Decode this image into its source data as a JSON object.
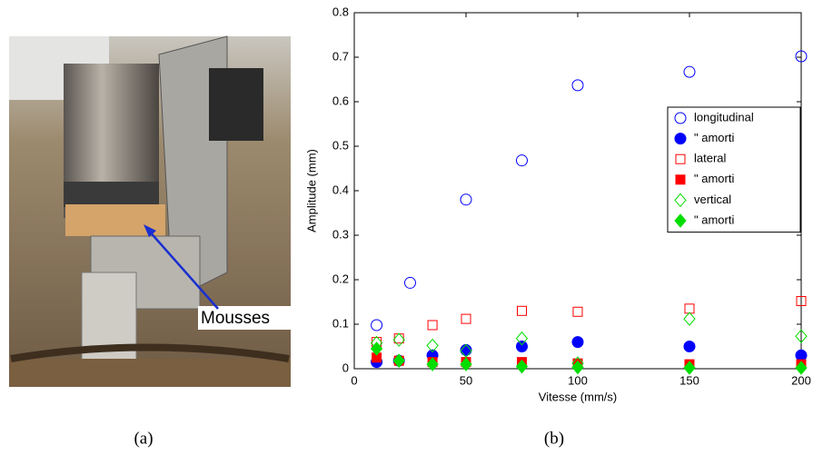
{
  "figure": {
    "photo_label": "Mousses",
    "captions": [
      "(a)",
      "(b)"
    ]
  },
  "chart_data": {
    "type": "scatter",
    "xlabel": "Vitesse (mm/s)",
    "ylabel": "Amplitude (mm)",
    "xlim": [
      0,
      200
    ],
    "ylim": [
      0,
      0.8
    ],
    "xticks": [
      0,
      50,
      100,
      150,
      200
    ],
    "yticks": [
      0,
      0.1,
      0.2,
      0.3,
      0.4,
      0.5,
      0.6,
      0.7,
      0.8
    ],
    "grid": false,
    "legend": "upper right",
    "series": [
      {
        "name": "longitudinal",
        "color": "#0000ff",
        "marker": "circle",
        "filled": false,
        "x": [
          10,
          25,
          50,
          75,
          100,
          150,
          200
        ],
        "values": [
          0.098,
          0.193,
          0.38,
          0.468,
          0.637,
          0.667,
          0.702
        ]
      },
      {
        "name": "\" amorti",
        "color": "#0000ff",
        "marker": "circle",
        "filled": true,
        "x": [
          10,
          20,
          35,
          50,
          75,
          100,
          150,
          200
        ],
        "values": [
          0.015,
          0.018,
          0.03,
          0.042,
          0.05,
          0.06,
          0.05,
          0.03
        ]
      },
      {
        "name": "lateral",
        "color": "#ff0000",
        "marker": "square",
        "filled": false,
        "x": [
          10,
          20,
          35,
          50,
          75,
          100,
          150,
          200
        ],
        "values": [
          0.06,
          0.068,
          0.098,
          0.112,
          0.13,
          0.128,
          0.135,
          0.152
        ]
      },
      {
        "name": "\" amorti",
        "color": "#ff0000",
        "marker": "square",
        "filled": true,
        "x": [
          10,
          20,
          35,
          50,
          75,
          100,
          150,
          200
        ],
        "values": [
          0.025,
          0.018,
          0.015,
          0.015,
          0.015,
          0.012,
          0.01,
          0.01
        ]
      },
      {
        "name": "vertical",
        "color": "#00dd00",
        "marker": "diamond",
        "filled": false,
        "x": [
          10,
          20,
          35,
          50,
          75,
          100,
          150,
          200
        ],
        "values": [
          0.058,
          0.065,
          0.052,
          0.04,
          0.068,
          0.012,
          0.112,
          0.073
        ]
      },
      {
        "name": "\" amorti",
        "color": "#00dd00",
        "marker": "diamond",
        "filled": true,
        "x": [
          10,
          20,
          35,
          50,
          75,
          100,
          150,
          200
        ],
        "values": [
          0.045,
          0.018,
          0.01,
          0.01,
          0.005,
          0.003,
          0.002,
          0.002
        ]
      }
    ]
  }
}
